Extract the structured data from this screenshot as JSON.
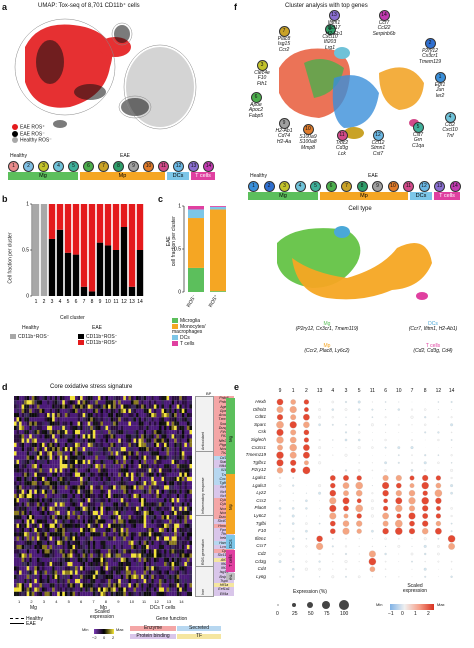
{
  "panel_letters": [
    "a",
    "b",
    "c",
    "d",
    "e",
    "f"
  ],
  "a": {
    "title": "UMAP: Tox-seq of 8,701 CD11b⁺ cells",
    "legend": [
      {
        "label": "EAE ROS⁺",
        "color": "#e41a1c"
      },
      {
        "label": "EAE ROS⁻",
        "color": "#000000"
      },
      {
        "label": "Healthy ROS⁻",
        "color": "#a8a8a8"
      }
    ],
    "groups": [
      {
        "label": "Healthy",
        "clusters": [
          "1",
          "2"
        ]
      },
      {
        "label": "EAE",
        "clusters": [
          "3",
          "4",
          "5",
          "6",
          "7",
          "8",
          "9",
          "10",
          "11",
          "12",
          "13",
          "14"
        ]
      }
    ],
    "cluster_numbers": [
      "1",
      "2",
      "3",
      "4",
      "5",
      "6",
      "7",
      "8",
      "9",
      "10",
      "11",
      "12",
      "13",
      "14"
    ],
    "bars": [
      {
        "label": "Mg",
        "color": "#5cbf5c"
      },
      {
        "label": "Mp",
        "color": "#f5a623"
      },
      {
        "label": "DCs",
        "color": "#7cc6e8"
      },
      {
        "label": "T cells",
        "color": "#e040a0"
      }
    ]
  },
  "b": {
    "ylabel": "Cell fraction per cluster",
    "xlabel": "Cell cluster",
    "yticks": [
      "0",
      "0.5",
      "1"
    ],
    "legend_healthy_header": "Healthy",
    "legend_eae_header": "EAE",
    "legend": [
      {
        "label": "CD11b⁺ROS⁻",
        "color": "#a8a8a8"
      },
      {
        "label": "CD11b⁺ROS⁻",
        "color": "#000000"
      },
      {
        "label": "CD11b⁺ROS⁺",
        "color": "#e41a1c"
      }
    ]
  },
  "c": {
    "ylabel": "EAE\ncell fraction per cluster",
    "categories": [
      "ROS⁻",
      "ROS⁺"
    ],
    "yticks": [
      "0",
      "0.5",
      "1"
    ],
    "legend": [
      {
        "label": "Microglia",
        "color": "#5cbf5c"
      },
      {
        "label": "Monocytes/\nmacrophages",
        "color": "#f5a623"
      },
      {
        "label": "DCs",
        "color": "#7cc6e8"
      },
      {
        "label": "T cells",
        "color": "#e040a0"
      }
    ]
  },
  "d": {
    "title": "Core oxidative stress signature",
    "bp_label": "BP",
    "bp_groups": [
      {
        "label": "Antioxidant",
        "color": "#f0f0f0"
      },
      {
        "label": "Inflammatory response",
        "color": "#f0f0f0"
      },
      {
        "label": "ROS generation",
        "color": "#f0f0f0"
      },
      {
        "label": "Iron",
        "color": "#f0f0f0"
      }
    ],
    "genes": [
      "Prdx6",
      "Prdx1",
      "Ager",
      "Gpx1",
      "Acod1",
      "Txnrd1",
      "Sod2",
      "Dusp1",
      "Fth1",
      "Ftl1",
      "Nfe2l2",
      "Ptgs2",
      "Nos2",
      "Tlr2",
      "Cd14",
      "Stat3",
      "Nfkb1",
      "Il1b",
      "Tnf",
      "Cxcl2",
      "Tgfb1",
      "Ncf1",
      "Ncf2",
      "Ncf4",
      "Cyba",
      "Cybb",
      "Nox1",
      "Nox4",
      "Duox1",
      "Slc40a1",
      "Hmox1",
      "Fpn1",
      "Tfrc",
      "Ireb2",
      "Hamp",
      "Lcn2",
      "Cp",
      "Slc11a1",
      "Atf3",
      "Ifit1",
      "Ifit3",
      "Isg15",
      "Bnip3",
      "Tspo",
      "Hif1a",
      "Eef1a1",
      "Eif4a"
    ],
    "gene_colors": [
      "#f4a6a6",
      "#f4a6a6",
      "#f4a6a6",
      "#f4a6a6",
      "#f4a6a6",
      "#f4a6a6",
      "#f4a6a6",
      "#f4a6a6",
      "#f4a6a6",
      "#f4a6a6",
      "#f4a6a6",
      "#f4a6a6",
      "#f4a6a6",
      "#f4a6a6",
      "#b7d7f0",
      "#d9c6ea",
      "#d9c6ea",
      "#b7d7f0",
      "#b7d7f0",
      "#b7d7f0",
      "#b7d7f0",
      "#d9c6ea",
      "#d9c6ea",
      "#d9c6ea",
      "#f4a6a6",
      "#f4a6a6",
      "#f4a6a6",
      "#f4a6a6",
      "#f4a6a6",
      "#d9c6ea",
      "#f4a6a6",
      "#d9c6ea",
      "#d9c6ea",
      "#d9c6ea",
      "#b7d7f0",
      "#d9c6ea",
      "#f4a6a6",
      "#d9c6ea",
      "#f5e6a0",
      "#d9c6ea",
      "#d9c6ea",
      "#d9c6ea",
      "#d9c6ea",
      "#d9c6ea",
      "#f5e6a0",
      "#d9c6ea",
      "#d9c6ea"
    ],
    "xlabels": [
      "1",
      "2",
      "3",
      "4",
      "5",
      "6",
      "7",
      "8",
      "9",
      "10",
      "11",
      "12",
      "13",
      "14"
    ],
    "x_groups": [
      {
        "label": "Mg"
      },
      {
        "label": "Mp"
      },
      {
        "label": "DCs T cells"
      }
    ],
    "legend_healthy": "Healthy",
    "legend_eae": "EAE",
    "scale_title": "Scaled\nexpression",
    "scale_min": "Min",
    "scale_max": "Max",
    "scale_ticks": [
      "−2",
      "0",
      "2"
    ],
    "gene_function_title": "Gene function",
    "gene_functions": [
      {
        "label": "Enzyme",
        "color": "#f4a6a6"
      },
      {
        "label": "Secreted",
        "color": "#b7d7f0"
      },
      {
        "label": "Protein binding",
        "color": "#d9c6ea"
      },
      {
        "label": "TF",
        "color": "#f5e6a0"
      }
    ]
  },
  "e": {
    "title": "Cluster analysis with top genes",
    "clusters": [
      {
        "num": "1",
        "genes": "Egr1\nJun\nIer2",
        "color": "#3a8fd9"
      },
      {
        "num": "2",
        "genes": "P2ry12\nCx3cr1\nTmem119",
        "color": "#2f6fd0"
      },
      {
        "num": "3",
        "genes": "Clec4e\nF10\nFth1",
        "color": "#c2c22a"
      },
      {
        "num": "4",
        "genes": "Ccl2\nCxcl10\nTnf",
        "color": "#6fc2d8"
      },
      {
        "num": "5",
        "genes": "Cst7\nGrn\nC1qa",
        "color": "#3fb09a"
      },
      {
        "num": "6",
        "genes": "Apoe\nApoc2\nFabp5",
        "color": "#4cae4c"
      },
      {
        "num": "7",
        "genes": "Plac8\nIsg15\nCcr2",
        "color": "#c9a227"
      },
      {
        "num": "8",
        "genes": "Cxcl10\nIfi203\nLrg1",
        "color": "#2f9e6a"
      },
      {
        "num": "9",
        "genes": "H2-Ab1\nCd74\nH2-Aa",
        "color": "#a0a0a0"
      },
      {
        "num": "10",
        "genes": "S100a9\nS100a8\nMmp8",
        "color": "#e07b2a"
      },
      {
        "num": "11",
        "genes": "Trbc2\nCd3g\nLck",
        "color": "#d24a8a"
      },
      {
        "num": "12",
        "genes": "Ccl12\nStmn1\nCst7",
        "color": "#6ab7e3"
      },
      {
        "num": "13",
        "genes": "Ifitm1\nCcl17\nH2-Eb1",
        "color": "#8a6fd0"
      },
      {
        "num": "14",
        "genes": "Ccr7\nCcl22\nSerpinb6b",
        "color": "#c13ab0"
      }
    ],
    "groups": [
      {
        "label": "Healthy"
      },
      {
        "label": "EAE"
      }
    ],
    "cluster_numbers": [
      "1",
      "2",
      "3",
      "4",
      "5",
      "6",
      "7",
      "8",
      "9",
      "10",
      "11",
      "12",
      "13",
      "14"
    ],
    "bars": [
      {
        "label": "Mg",
        "color": "#5cbf5c"
      },
      {
        "label": "Mp",
        "color": "#f5a623"
      },
      {
        "label": "DCs",
        "color": "#7cc6e8"
      },
      {
        "label": "T cells",
        "color": "#e040a0"
      }
    ],
    "cell_type_title": "Cell type",
    "cell_types": [
      {
        "label": "Mg",
        "genes": "(P2ry12, Cx3cr1, Tmem119)",
        "color": "#5cbf5c"
      },
      {
        "label": "DCs",
        "genes": "(Ccr7, Ifitm1, H2-Ab1)",
        "color": "#4aa8d8"
      },
      {
        "label": "Mp",
        "genes": "(Ccr2, Plac8, Ly6c2)",
        "color": "#f5a623"
      },
      {
        "label": "T cells",
        "genes": "(Cd2, Cd3g, Cd4)",
        "color": "#e040a0"
      }
    ]
  },
  "f": {
    "columns": [
      "9",
      "1",
      "2",
      "13",
      "4",
      "3",
      "5",
      "11",
      "6",
      "10",
      "7",
      "8",
      "12",
      "14"
    ],
    "genes": [
      "Hexb",
      "Olfml3",
      "Cd81",
      "Sparc",
      "Csk",
      "Siglech",
      "Cx3cr1",
      "Tmem119",
      "Tgfbr1",
      "P2ry12",
      "Lgals1",
      "Lgals3",
      "Lyz2",
      "Ccr2",
      "Plac8",
      "Ly6c2",
      "Tgfbi",
      "F10",
      "Ifitm1",
      "Ccr7",
      "Cd2",
      "Cd3g",
      "Cd4",
      "Ly6g"
    ],
    "row_groups": [
      {
        "label": "Mg",
        "color": "#5cbf5c",
        "rows": 10
      },
      {
        "label": "Mp",
        "color": "#f5a623",
        "rows": 8
      },
      {
        "label": "DCs",
        "color": "#7cc6e8",
        "rows": 2
      },
      {
        "label": "T cells",
        "color": "#e040a0",
        "rows": 3
      },
      {
        "label": "Neu.",
        "color": "#bdbdbd",
        "rows": 1
      }
    ],
    "expression_title": "Expression (%)",
    "expression_ticks": [
      "0",
      "25",
      "50",
      "75",
      "100"
    ],
    "scaled_title": "Scaled\nexpression",
    "scaled_min": "Min",
    "scaled_max": "Max",
    "scaled_ticks": [
      "−1",
      "0",
      "1",
      "2"
    ]
  },
  "chart_data": [
    {
      "type": "bar",
      "panel": "b",
      "categories": [
        "1",
        "2",
        "3",
        "4",
        "5",
        "6",
        "7",
        "8",
        "9",
        "10",
        "11",
        "12",
        "13",
        "14"
      ],
      "series": [
        {
          "name": "Healthy CD11b⁺ROS⁻",
          "color": "#a8a8a8",
          "values": [
            1,
            1,
            0,
            0,
            0,
            0,
            0,
            0,
            0,
            0,
            0,
            0,
            0,
            0
          ]
        },
        {
          "name": "EAE CD11b⁺ROS⁻",
          "color": "#000000",
          "values": [
            0,
            0,
            0.62,
            0.72,
            0.47,
            0.45,
            0.1,
            0.05,
            0.58,
            0.55,
            0.5,
            0.75,
            0.1,
            0.5
          ]
        },
        {
          "name": "EAE CD11b⁺ROS⁺",
          "color": "#e41a1c",
          "values": [
            0,
            0,
            0.38,
            0.28,
            0.53,
            0.55,
            0.9,
            0.95,
            0.42,
            0.45,
            0.5,
            0.25,
            0.9,
            0.5
          ]
        }
      ],
      "xlabel": "Cell cluster",
      "ylabel": "Cell fraction per cluster",
      "ylim": [
        0,
        1
      ],
      "stacked": true
    },
    {
      "type": "bar",
      "panel": "c",
      "categories": [
        "ROS⁻",
        "ROS⁺"
      ],
      "series": [
        {
          "name": "Microglia",
          "color": "#5cbf5c",
          "values": [
            0.28,
            0.01
          ]
        },
        {
          "name": "Monocytes/macrophages",
          "color": "#f5a623",
          "values": [
            0.58,
            0.95
          ]
        },
        {
          "name": "DCs",
          "color": "#7cc6e8",
          "values": [
            0.1,
            0.03
          ]
        },
        {
          "name": "T cells",
          "color": "#e040a0",
          "values": [
            0.04,
            0.01
          ]
        }
      ],
      "ylabel": "EAE cell fraction per cluster",
      "ylim": [
        0,
        1
      ],
      "stacked": true
    }
  ]
}
